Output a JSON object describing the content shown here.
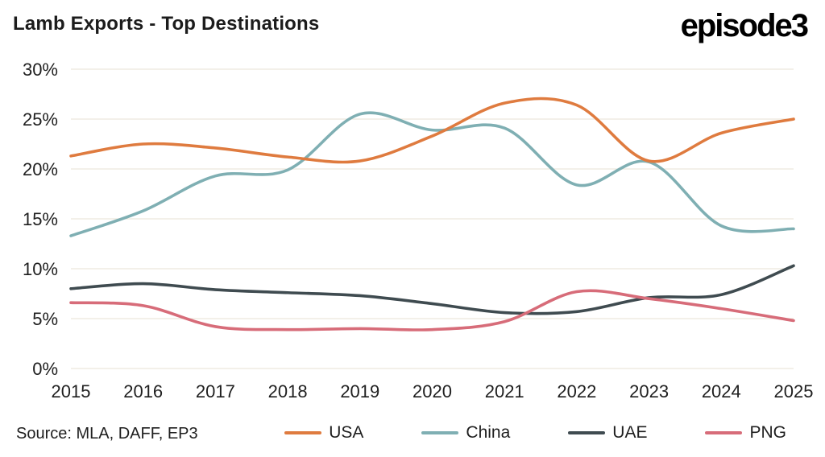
{
  "header": {
    "title": "Lamb Exports - Top Destinations",
    "logo_text": "episode3"
  },
  "footer": {
    "source": "Source: MLA, DAFF, EP3"
  },
  "chart_data": {
    "type": "line",
    "title": "Lamb Exports - Top Destinations",
    "xlabel": "",
    "ylabel": "",
    "x": [
      2015,
      2016,
      2017,
      2018,
      2019,
      2020,
      2021,
      2022,
      2023,
      2024,
      2025
    ],
    "x_tick_labels": [
      "2015",
      "2016",
      "2017",
      "2018",
      "2019",
      "2020",
      "2021",
      "2022",
      "2023",
      "2024",
      "2025"
    ],
    "ylim": [
      0,
      30
    ],
    "yticks": [
      0,
      5,
      10,
      15,
      20,
      25,
      30
    ],
    "ytick_labels": [
      "0%",
      "5%",
      "10%",
      "15%",
      "20%",
      "25%",
      "30%"
    ],
    "grid": "horizontal",
    "gridline_color": "#ece6dc",
    "legend_position": "bottom",
    "series": [
      {
        "name": "USA",
        "color": "#df7b3f",
        "values": [
          21.3,
          22.5,
          22.1,
          21.2,
          20.8,
          23.3,
          26.6,
          26.4,
          20.8,
          23.6,
          25.0
        ]
      },
      {
        "name": "China",
        "color": "#7fafb3",
        "values": [
          13.3,
          15.8,
          19.3,
          19.9,
          25.5,
          23.9,
          24.1,
          18.4,
          20.7,
          14.3,
          14.0
        ]
      },
      {
        "name": "UAE",
        "color": "#3f4b50",
        "values": [
          8.0,
          8.5,
          7.9,
          7.6,
          7.3,
          6.5,
          5.6,
          5.7,
          7.1,
          7.4,
          10.3
        ]
      },
      {
        "name": "PNG",
        "color": "#d76c79",
        "values": [
          6.6,
          6.3,
          4.2,
          3.9,
          4.0,
          3.9,
          4.7,
          7.7,
          7.0,
          6.0,
          4.8
        ]
      }
    ]
  }
}
